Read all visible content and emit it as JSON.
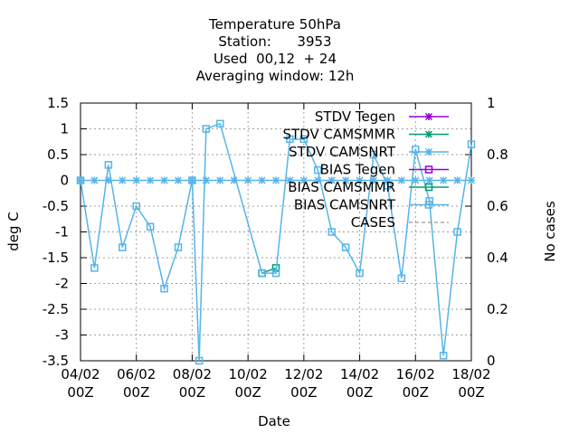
{
  "chart_data": {
    "type": "line",
    "title_lines": [
      "Temperature 50hPa",
      "Station:      3953",
      "Used  00,12  + 24",
      "Averaging window: 12h"
    ],
    "xlabel": "Date",
    "ylabel": "deg C",
    "y2label": "No cases",
    "xlim": [
      0,
      28
    ],
    "ylim": [
      -3.5,
      1.5
    ],
    "y2lim": [
      0,
      1
    ],
    "x_tick_labels": [
      "04/02\n00Z",
      "06/02\n00Z",
      "08/02\n00Z",
      "10/02\n00Z",
      "12/02\n00Z",
      "14/02\n00Z",
      "16/02\n00Z",
      "18/02\n00Z"
    ],
    "x_tick_positions": [
      0,
      4,
      8,
      12,
      16,
      20,
      24,
      28
    ],
    "y_ticks": [
      1.5,
      1,
      0.5,
      0,
      -0.5,
      -1,
      -1.5,
      -2,
      -2.5,
      -3,
      -3.5
    ],
    "y_tick_labels": [
      "1.5",
      "1",
      "0.5",
      "0",
      "-0.5",
      "-1",
      "-1.5",
      "-2",
      "-2.5",
      "-3",
      "-3.5"
    ],
    "y2_ticks": [
      1,
      0.8,
      0.6,
      0.4,
      0.2,
      0
    ],
    "y2_tick_labels": [
      "1",
      "0.8",
      "0.6",
      "0.4",
      "0.2",
      "0"
    ],
    "grid": true,
    "legend_position": "top-right",
    "colors": {
      "tegen": "#9400d3",
      "camsmmr": "#009e73",
      "camsnrt": "#56b4e9",
      "cases": "#808080"
    },
    "series": [
      {
        "name": "STDV Tegen",
        "style": "stdv",
        "color": "#9400d3",
        "x": [],
        "y": []
      },
      {
        "name": "STDV CAMSMMR",
        "style": "stdv",
        "color": "#009e73",
        "x": [],
        "y": []
      },
      {
        "name": "STDV CAMSNRT",
        "style": "stdv",
        "color": "#56b4e9",
        "x": [
          0,
          1,
          2,
          3,
          4,
          5,
          6,
          7,
          8,
          9,
          10,
          11,
          12,
          13,
          14,
          15,
          16,
          17,
          18,
          19,
          20,
          21,
          22,
          23,
          24,
          25,
          26,
          27,
          28
        ],
        "y": [
          0,
          0,
          0,
          0,
          0,
          0,
          0,
          0,
          0,
          0,
          0,
          0,
          0,
          0,
          0,
          0,
          0,
          0,
          0,
          0,
          0,
          0,
          0,
          0,
          0,
          0,
          0,
          0,
          0
        ]
      },
      {
        "name": "BIAS Tegen",
        "style": "bias",
        "color": "#9400d3",
        "x": [],
        "y": []
      },
      {
        "name": "BIAS CAMSMMR",
        "style": "bias",
        "color": "#009e73",
        "x": [
          13,
          14
        ],
        "y": [
          -1.8,
          -1.7
        ]
      },
      {
        "name": "BIAS CAMSNRT",
        "style": "bias",
        "color": "#56b4e9",
        "x": [
          0,
          1,
          2,
          3,
          4,
          5,
          6,
          7,
          8,
          8.5,
          9,
          10,
          13,
          14,
          15,
          16,
          17,
          18,
          19,
          20,
          21,
          22,
          23,
          24,
          25,
          26,
          27,
          28
        ],
        "y": [
          0,
          -1.7,
          0.3,
          -1.3,
          -0.5,
          -0.9,
          -2.1,
          -1.3,
          0,
          -3.5,
          1.0,
          1.1,
          -1.8,
          -1.8,
          0.8,
          0.8,
          0.2,
          -1.0,
          -1.3,
          -1.8,
          0.5,
          -0.1,
          -1.9,
          0.6,
          -0.4,
          -3.4,
          -1.0,
          0.7
        ]
      },
      {
        "name": "CASES",
        "style": "cases",
        "color": "#808080",
        "x": [],
        "y": []
      }
    ]
  }
}
